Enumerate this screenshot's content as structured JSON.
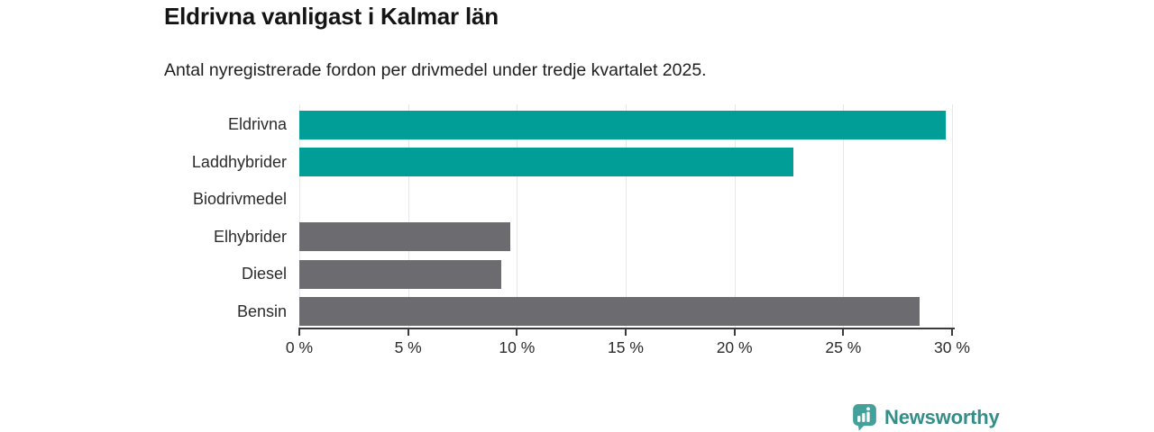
{
  "title": "Eldrivna vanligast i Kalmar län",
  "subtitle": "Antal nyregistrerade fordon per drivmedel under tredje kvartalet 2025.",
  "chart_data": {
    "type": "bar",
    "orientation": "horizontal",
    "title": "Eldrivna vanligast i Kalmar län",
    "subtitle": "Antal nyregistrerade fordon per drivmedel under tredje kvartalet 2025.",
    "categories": [
      "Eldrivna",
      "Laddhybrider",
      "Biodrivmedel",
      "Elhybrider",
      "Diesel",
      "Bensin"
    ],
    "values": [
      29.7,
      22.7,
      0,
      9.7,
      9.3,
      28.5
    ],
    "unit": "%",
    "xlabel": "",
    "ylabel": "",
    "xlim": [
      0,
      30
    ],
    "x_ticks": [
      0,
      5,
      10,
      15,
      20,
      25,
      30
    ],
    "x_tick_labels": [
      "0 %",
      "5 %",
      "10 %",
      "15 %",
      "20 %",
      "25 %",
      "30 %"
    ],
    "grid": true,
    "legend": "none",
    "bar_colors": [
      "#009E97",
      "#009E97",
      "#009E97",
      "#6C6C70",
      "#6C6C70",
      "#6C6C70"
    ],
    "accent_color": "#009E97",
    "neutral_color": "#6C6C70",
    "gridline_color": "#e7e7e7",
    "axis_color": "#3b3b3b"
  },
  "branding": {
    "logo_text": "Newsworthy",
    "logo_icon": "bar-chart-speech-bubble-icon",
    "logo_text_color": "#338E88",
    "logo_icon_color": "#44A09A"
  }
}
